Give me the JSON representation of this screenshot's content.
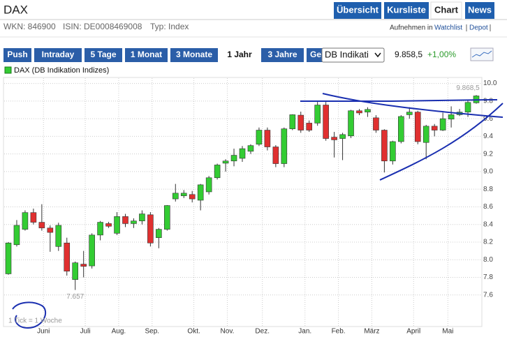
{
  "header": {
    "title": "DAX",
    "tabs": [
      "Übersicht",
      "Kursliste",
      "Chart",
      "News"
    ],
    "active_tab": "Chart"
  },
  "info": {
    "wkn": "WKN: 846900",
    "isin": "ISIN: DE0008469008",
    "typ": "Typ: Index",
    "watchlist_prefix": "Aufnehmen in",
    "watchlist": "Watchlist",
    "depot": "Depot"
  },
  "toolbar": {
    "ranges": [
      "Push",
      "Intraday",
      "5 Tage",
      "1 Monat",
      "3 Monate",
      "1 Jahr",
      "3 Jahre",
      "Gesamt"
    ],
    "active_range": "1 Jahr",
    "exchange": "DB Indikati",
    "price": "9.858,5",
    "change": "+1,00%"
  },
  "chart_data": {
    "type": "candlestick",
    "legend": "DAX (DB Indikation Indizes)",
    "color": "#33cc33",
    "down_color": "#e03030",
    "open": [
      7840,
      8170,
      8345,
      8535,
      8425,
      8360,
      8150,
      8190,
      7775,
      7950,
      7930,
      8280,
      8410,
      8300,
      8490,
      8410,
      8440,
      8510,
      8250,
      8345,
      8690,
      8725,
      8740,
      8675,
      8770,
      8930,
      9095,
      9120,
      9150,
      9230,
      9310,
      9470,
      9280,
      9090,
      9485,
      9640,
      9550,
      9550,
      9755,
      9390,
      9375,
      9405,
      9690,
      9675,
      9610,
      9470,
      9120,
      9340,
      9645,
      9675,
      9330,
      9515,
      9470,
      9595,
      9645,
      9675,
      9780
    ],
    "high": [
      8200,
      8450,
      8560,
      8580,
      8630,
      8390,
      8420,
      8250,
      7980,
      8100,
      8300,
      8440,
      8430,
      8540,
      8520,
      8470,
      8560,
      8540,
      8360,
      8620,
      8860,
      8790,
      8780,
      8860,
      8950,
      9090,
      9140,
      9260,
      9290,
      9310,
      9500,
      9500,
      9300,
      9500,
      9650,
      9680,
      9580,
      9790,
      9790,
      9450,
      9440,
      9700,
      9710,
      9730,
      9640,
      9480,
      9350,
      9640,
      9730,
      9690,
      9530,
      9540,
      9670,
      9740,
      9710,
      9810,
      9868.5
    ],
    "low": [
      7830,
      8150,
      8330,
      8400,
      8330,
      8090,
      8100,
      7820,
      7657,
      7800,
      7900,
      8220,
      8360,
      8280,
      8370,
      8360,
      8400,
      8150,
      8130,
      8330,
      8660,
      8700,
      8650,
      8560,
      8740,
      8910,
      9000,
      9060,
      9110,
      9200,
      9290,
      9240,
      9050,
      9050,
      9470,
      9440,
      9450,
      9520,
      9350,
      9160,
      9130,
      9380,
      9640,
      9620,
      9440,
      8990,
      9080,
      9320,
      9600,
      9310,
      9140,
      9400,
      9460,
      9500,
      9630,
      9620,
      9770
    ],
    "close": [
      8190,
      8390,
      8535,
      8425,
      8360,
      8310,
      8390,
      7870,
      7965,
      7925,
      8280,
      8425,
      8380,
      8490,
      8410,
      8440,
      8520,
      8190,
      8345,
      8615,
      8755,
      8755,
      8690,
      8850,
      8930,
      9075,
      9120,
      9185,
      9260,
      9295,
      9470,
      9280,
      9090,
      9485,
      9645,
      9470,
      9470,
      9755,
      9375,
      9360,
      9420,
      9690,
      9665,
      9705,
      9470,
      9120,
      9340,
      9625,
      9675,
      9340,
      9515,
      9470,
      9600,
      9645,
      9675,
      9785,
      9858.5
    ],
    "xlim": [
      -0.5,
      56.5
    ],
    "xticks": [
      {
        "value": 4.2,
        "label": "Juni"
      },
      {
        "value": 9.2,
        "label": "Juli"
      },
      {
        "value": 13.2,
        "label": "Aug."
      },
      {
        "value": 17.2,
        "label": "Sep."
      },
      {
        "value": 22.2,
        "label": "Okt."
      },
      {
        "value": 26.2,
        "label": "Nov."
      },
      {
        "value": 30.4,
        "label": "Dez."
      },
      {
        "value": 35.5,
        "label": "Jan."
      },
      {
        "value": 39.5,
        "label": "Feb."
      },
      {
        "value": 43.5,
        "label": "März"
      },
      {
        "value": 48.5,
        "label": "April"
      },
      {
        "value": 52.6,
        "label": "Mai"
      }
    ],
    "ylim": [
      7250,
      10060
    ],
    "yticks": [
      {
        "value": 7600,
        "label": "7.6"
      },
      {
        "value": 7800,
        "label": "7.8"
      },
      {
        "value": 8000,
        "label": "8.0"
      },
      {
        "value": 8200,
        "label": "8.2"
      },
      {
        "value": 8400,
        "label": "8.4"
      },
      {
        "value": 8600,
        "label": "8.6"
      },
      {
        "value": 8800,
        "label": "8.8"
      },
      {
        "value": 9000,
        "label": "9.0"
      },
      {
        "value": 9200,
        "label": "9.2"
      },
      {
        "value": 9400,
        "label": "9.4"
      },
      {
        "value": 9600,
        "label": "9.6"
      },
      {
        "value": 9800,
        "label": "9.8"
      },
      {
        "value": 10000,
        "label": "10.0"
      }
    ],
    "grid": true,
    "annotations": [
      {
        "text": "9.868,5",
        "x": 55.0,
        "y": 9868.5
      },
      {
        "text": "7.657",
        "x": 8.0,
        "y": 7657
      }
    ],
    "footnote": "1 Tick = 1 Woche"
  }
}
